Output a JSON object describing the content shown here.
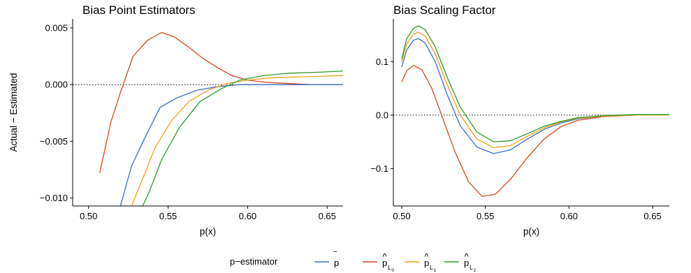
{
  "colors": {
    "pbar": "#3b6fc4",
    "L0": "#d24a1e",
    "L1": "#f2a01a",
    "L2": "#2e9a2e"
  },
  "legend": {
    "title": "p−estimator",
    "entries": [
      {
        "key": "pbar",
        "symbol": "p",
        "accent": "‾",
        "sub": ""
      },
      {
        "key": "L0",
        "symbol": "p",
        "accent": "^",
        "sub": "L",
        "subsub": "0"
      },
      {
        "key": "L1",
        "symbol": "p",
        "accent": "^",
        "sub": "L",
        "subsub": "1"
      },
      {
        "key": "L2",
        "symbol": "p",
        "accent": "^",
        "sub": "L",
        "subsub": "2"
      }
    ]
  },
  "chart_data": [
    {
      "type": "line",
      "title": "Bias Point Estimators",
      "xlabel": "p(x)",
      "ylabel": "Actual − Estimated",
      "xlim": [
        0.49,
        0.66
      ],
      "ylim": [
        -0.0107,
        0.0058
      ],
      "xticks": [
        0.5,
        0.55,
        0.6,
        0.65
      ],
      "xtick_labels": [
        "0.50",
        "0.55",
        "0.60",
        "0.65"
      ],
      "yticks": [
        -0.01,
        -0.005,
        0.0,
        0.005
      ],
      "ytick_labels": [
        "−0.010",
        "−0.005",
        "0.000",
        "0.005"
      ],
      "zero_line": true,
      "series": [
        {
          "key": "L0",
          "x": [
            0.507,
            0.514,
            0.521,
            0.528,
            0.537,
            0.546,
            0.554,
            0.563,
            0.572,
            0.581,
            0.59,
            0.6,
            0.612,
            0.625,
            0.64,
            0.66
          ],
          "y": [
            -0.0078,
            -0.0033,
            -0.0003,
            0.0025,
            0.0039,
            0.0046,
            0.0042,
            0.0033,
            0.0023,
            0.0015,
            0.0008,
            0.0004,
            0.0002,
            0.0001,
            0.0,
            0.0
          ]
        },
        {
          "key": "pbar",
          "x": [
            0.52,
            0.527,
            0.535,
            0.545,
            0.555,
            0.568,
            0.58,
            0.595,
            0.61,
            0.63,
            0.66
          ],
          "y": [
            -0.0107,
            -0.0072,
            -0.0048,
            -0.002,
            -0.0012,
            -0.0005,
            -0.0002,
            0.0,
            0.0,
            0.0,
            0.0
          ]
        },
        {
          "key": "L1",
          "x": [
            0.527,
            0.532,
            0.542,
            0.552,
            0.563,
            0.575,
            0.587,
            0.6,
            0.615,
            0.635,
            0.66
          ],
          "y": [
            -0.0107,
            -0.009,
            -0.0055,
            -0.0032,
            -0.0015,
            -0.0005,
            0.0001,
            0.0004,
            0.0006,
            0.0007,
            0.0008
          ]
        },
        {
          "key": "L2",
          "x": [
            0.534,
            0.538,
            0.546,
            0.557,
            0.57,
            0.583,
            0.595,
            0.61,
            0.625,
            0.645,
            0.66
          ],
          "y": [
            -0.0107,
            -0.0095,
            -0.0066,
            -0.0038,
            -0.0015,
            -0.0004,
            0.0004,
            0.0008,
            0.001,
            0.0011,
            0.0012
          ]
        }
      ]
    },
    {
      "type": "line",
      "title": "Bias Scaling Factor",
      "xlabel": "p(x)",
      "ylabel": "",
      "xlim": [
        0.495,
        0.66
      ],
      "ylim": [
        -0.17,
        0.18
      ],
      "xticks": [
        0.5,
        0.55,
        0.6,
        0.65
      ],
      "xtick_labels": [
        "0.50",
        "0.55",
        "0.60",
        "0.65"
      ],
      "yticks": [
        -0.1,
        0.0,
        0.1
      ],
      "ytick_labels": [
        "−0.1",
        "0.0",
        "0.1"
      ],
      "zero_line": true,
      "series": [
        {
          "key": "L0",
          "x": [
            0.5,
            0.503,
            0.507,
            0.512,
            0.518,
            0.525,
            0.532,
            0.54,
            0.548,
            0.556,
            0.565,
            0.575,
            0.585,
            0.595,
            0.605,
            0.62,
            0.64,
            0.66
          ],
          "y": [
            0.062,
            0.083,
            0.093,
            0.085,
            0.05,
            -0.01,
            -0.07,
            -0.125,
            -0.152,
            -0.148,
            -0.12,
            -0.08,
            -0.045,
            -0.022,
            -0.01,
            -0.003,
            0.0,
            0.0
          ]
        },
        {
          "key": "pbar",
          "x": [
            0.5,
            0.503,
            0.507,
            0.51,
            0.514,
            0.52,
            0.527,
            0.535,
            0.545,
            0.555,
            0.565,
            0.575,
            0.585,
            0.595,
            0.605,
            0.62,
            0.64,
            0.66
          ],
          "y": [
            0.09,
            0.122,
            0.14,
            0.143,
            0.135,
            0.1,
            0.04,
            -0.02,
            -0.06,
            -0.072,
            -0.065,
            -0.045,
            -0.027,
            -0.015,
            -0.007,
            -0.002,
            0.0,
            0.0
          ]
        },
        {
          "key": "L1",
          "x": [
            0.5,
            0.503,
            0.507,
            0.51,
            0.514,
            0.52,
            0.527,
            0.535,
            0.545,
            0.555,
            0.565,
            0.575,
            0.585,
            0.595,
            0.605,
            0.62,
            0.64,
            0.66
          ],
          "y": [
            0.1,
            0.133,
            0.151,
            0.155,
            0.148,
            0.115,
            0.058,
            0.0,
            -0.045,
            -0.061,
            -0.057,
            -0.04,
            -0.024,
            -0.013,
            -0.006,
            -0.002,
            0.0,
            0.0
          ]
        },
        {
          "key": "L2",
          "x": [
            0.5,
            0.503,
            0.507,
            0.51,
            0.514,
            0.52,
            0.527,
            0.535,
            0.545,
            0.555,
            0.565,
            0.575,
            0.585,
            0.595,
            0.605,
            0.62,
            0.64,
            0.66
          ],
          "y": [
            0.105,
            0.143,
            0.162,
            0.167,
            0.16,
            0.128,
            0.072,
            0.015,
            -0.032,
            -0.05,
            -0.048,
            -0.035,
            -0.021,
            -0.012,
            -0.005,
            -0.001,
            0.001,
            0.001
          ]
        }
      ]
    }
  ]
}
